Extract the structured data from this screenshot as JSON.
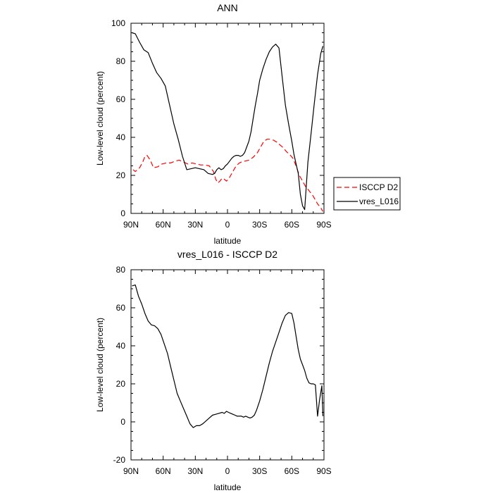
{
  "chart_data": [
    {
      "type": "line",
      "title": "ANN",
      "xlabel": "latitude",
      "ylabel": "Low-level cloud (percent)",
      "xlim": [
        90,
        -90
      ],
      "ylim": [
        0,
        100
      ],
      "x_ticks": [
        90,
        60,
        30,
        0,
        -30,
        -60,
        -90
      ],
      "x_tick_labels": [
        "90N",
        "60N",
        "30N",
        "0",
        "30S",
        "60S",
        "90S"
      ],
      "y_ticks": [
        0,
        20,
        40,
        60,
        80,
        100
      ],
      "y_tick_labels": [
        "0",
        "20",
        "40",
        "60",
        "80",
        "100"
      ],
      "legend": {
        "placement": "right-outside"
      },
      "series": [
        {
          "name": "ISCCP D2",
          "color": "#ff0000",
          "dash": "dashed",
          "x": [
            88,
            86,
            82,
            79,
            77,
            75,
            72,
            69,
            65,
            61,
            57,
            53,
            49,
            45,
            41,
            37,
            33,
            29,
            25,
            21,
            17,
            13,
            11,
            9,
            7,
            5,
            3,
            1,
            -1,
            -3,
            -5,
            -7,
            -9,
            -11,
            -13,
            -16,
            -20,
            -24,
            -28,
            -31,
            -34,
            -37,
            -40,
            -43,
            -46,
            -49,
            -52,
            -55,
            -58,
            -61,
            -64,
            -67,
            -70,
            -73,
            -76,
            -80,
            -84,
            -87,
            -89
          ],
          "y": [
            23,
            22,
            24,
            27,
            30,
            30.5,
            28,
            24,
            24.5,
            26,
            26.5,
            26.5,
            27.5,
            28,
            27,
            26,
            26.5,
            26,
            25.5,
            25.5,
            25,
            22,
            18,
            16,
            17,
            18.5,
            18,
            17,
            18,
            20,
            22,
            24,
            25.5,
            26.5,
            27,
            27.5,
            28,
            29.5,
            32,
            35,
            38,
            39,
            39,
            38.5,
            37.5,
            36,
            34.5,
            32.5,
            31,
            29,
            25,
            20,
            17,
            14,
            12,
            9,
            5,
            3,
            1
          ]
        },
        {
          "name": "vres_L016",
          "color": "#000000",
          "dash": "solid",
          "x": [
            89,
            86,
            82,
            78,
            74,
            70,
            66,
            62,
            58,
            54,
            50,
            46,
            42,
            38,
            34,
            30,
            26,
            22,
            18,
            14,
            12,
            10,
            8,
            6,
            4,
            2,
            0,
            -2,
            -4,
            -6,
            -8,
            -10,
            -12,
            -14,
            -16,
            -18,
            -20,
            -22,
            -24,
            -26,
            -28,
            -30,
            -33,
            -36,
            -39,
            -42,
            -45,
            -48,
            -51,
            -54,
            -57,
            -60,
            -62,
            -64,
            -66,
            -68,
            -70,
            -72,
            -75,
            -78,
            -81,
            -84,
            -87,
            -89
          ],
          "y": [
            95,
            94.5,
            90,
            86,
            84.5,
            79,
            74,
            71,
            67,
            57,
            47,
            39,
            30,
            23,
            23.5,
            24,
            23.5,
            23,
            21,
            20.5,
            21,
            23,
            24,
            23,
            23.5,
            25,
            26,
            27.5,
            29,
            30,
            30.5,
            30.5,
            30,
            30.5,
            32,
            35,
            38,
            43,
            50,
            57,
            63,
            70,
            76,
            81,
            85,
            87.5,
            89,
            87,
            72,
            57,
            47,
            38,
            31,
            26,
            21,
            10,
            4,
            2,
            27,
            42,
            58,
            73,
            84,
            88
          ]
        }
      ]
    },
    {
      "type": "line",
      "title": "vres_L016 - ISCCP D2",
      "xlabel": "latitude",
      "ylabel": "Low-level cloud (percent)",
      "xlim": [
        90,
        -90
      ],
      "ylim": [
        -20,
        80
      ],
      "x_ticks": [
        90,
        60,
        30,
        0,
        -30,
        -60,
        -90
      ],
      "x_tick_labels": [
        "90N",
        "60N",
        "30N",
        "0",
        "30S",
        "60S",
        "90S"
      ],
      "y_ticks": [
        -20,
        0,
        20,
        40,
        60,
        80
      ],
      "y_tick_labels": [
        "-20",
        "0",
        "20",
        "40",
        "60",
        "80"
      ],
      "series": [
        {
          "name": "",
          "color": "#000000",
          "dash": "solid",
          "x": [
            89,
            86,
            83,
            80,
            77,
            74,
            71,
            68,
            65,
            62,
            59,
            56,
            53,
            50,
            47,
            44,
            41,
            38,
            35,
            32,
            29,
            26,
            23,
            20,
            17,
            14,
            11,
            8,
            5,
            3,
            1,
            -1,
            -3,
            -5,
            -7,
            -9,
            -11,
            -13,
            -15,
            -17,
            -19,
            -21,
            -23,
            -25,
            -27,
            -30,
            -33,
            -36,
            -39,
            -42,
            -45,
            -48,
            -51,
            -54,
            -57,
            -60,
            -62,
            -64,
            -66,
            -68,
            -70,
            -72,
            -74,
            -76,
            -78,
            -80,
            -82,
            -84,
            -86,
            -88,
            -89
          ],
          "y": [
            71.5,
            72,
            66,
            62,
            57,
            53,
            51,
            50.5,
            49,
            46,
            41,
            36,
            29,
            22,
            15,
            11,
            7,
            3,
            -1,
            -3,
            -2,
            -2,
            -1,
            0.5,
            2,
            3.5,
            4,
            4.5,
            5,
            4.5,
            5.5,
            5,
            4.5,
            4,
            3.5,
            3,
            3,
            3,
            2.5,
            3,
            2.5,
            2,
            2.5,
            3.5,
            6,
            11,
            17,
            24,
            31,
            37,
            42,
            47,
            52,
            56,
            57.5,
            57,
            52,
            45,
            38,
            33,
            30,
            27,
            23,
            20.5,
            20,
            20,
            19.5,
            3,
            12,
            19,
            3
          ]
        }
      ]
    }
  ]
}
